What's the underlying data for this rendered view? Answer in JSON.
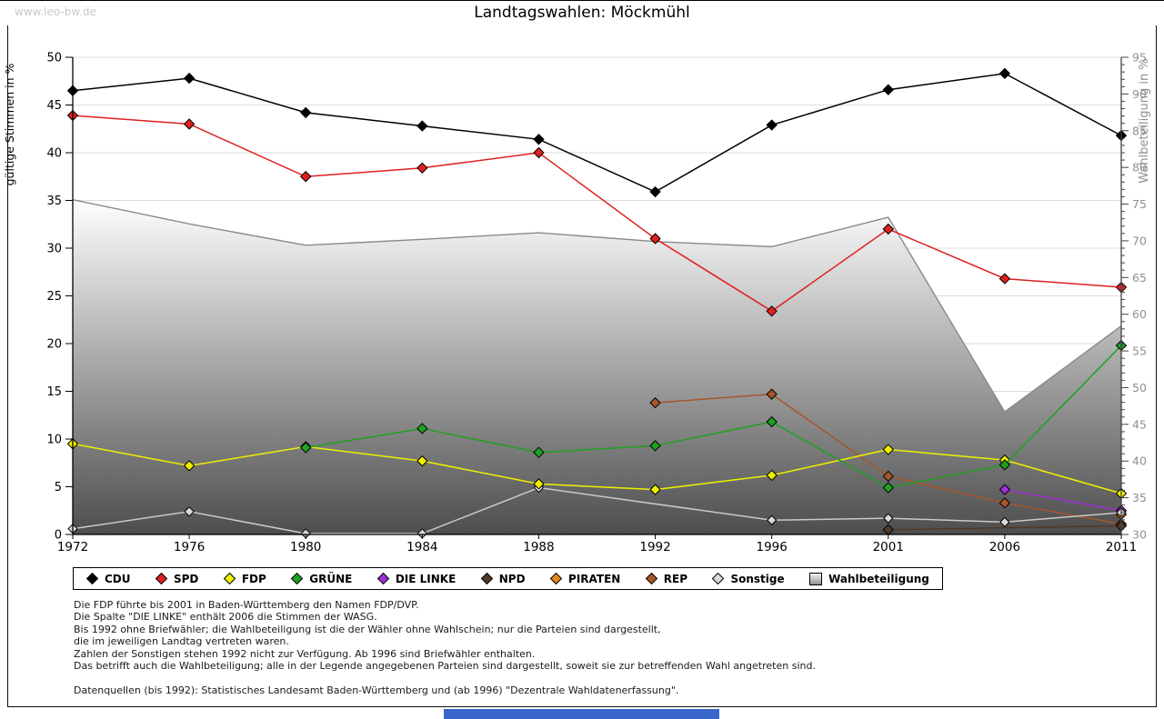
{
  "watermark": "www.leo-bw.de",
  "title": "Landtagswahlen: Möckmühl",
  "chart_data": {
    "type": "line",
    "title": "Landtagswahlen: Möckmühl",
    "x_categories": [
      "1972",
      "1976",
      "1980",
      "1984",
      "1988",
      "1992",
      "1996",
      "2001",
      "2006",
      "2011"
    ],
    "left_axis": {
      "label": "gültige Stimmen in %",
      "min": 0,
      "max": 50,
      "ticks": [
        0,
        5,
        10,
        15,
        20,
        25,
        30,
        35,
        40,
        45,
        50
      ]
    },
    "right_axis": {
      "label": "Wahlbeteiligung in %",
      "min": 30,
      "max": 95,
      "ticks": [
        30,
        35,
        40,
        45,
        50,
        55,
        60,
        65,
        70,
        75,
        80,
        85,
        90,
        95
      ],
      "minor_tick_step": 1
    },
    "grid": true,
    "legend_position": "bottom",
    "area_gradient": [
      "#ffffff",
      "#4d4d4d"
    ],
    "draw_order": [
      "REP",
      "NPD",
      "PIRATEN",
      "DIE LINKE",
      "Sonstige",
      "FDP",
      "GRÜNE",
      "SPD",
      "CDU"
    ],
    "series": [
      {
        "name": "CDU",
        "axis": "left",
        "color": "#000000",
        "values": [
          46.5,
          47.8,
          44.2,
          42.8,
          41.4,
          35.9,
          42.9,
          46.6,
          48.3,
          41.8
        ]
      },
      {
        "name": "SPD",
        "axis": "left",
        "color": "#e02020",
        "values": [
          43.9,
          43.0,
          37.5,
          38.4,
          40.0,
          31.0,
          23.4,
          32.0,
          26.8,
          25.9
        ]
      },
      {
        "name": "FDP",
        "axis": "left",
        "color": "#f0f000",
        "values": [
          9.5,
          7.2,
          9.2,
          7.7,
          5.3,
          4.7,
          6.2,
          8.9,
          7.8,
          4.3
        ]
      },
      {
        "name": "GRÜNE",
        "axis": "left",
        "color": "#20a020",
        "values": [
          null,
          null,
          9.1,
          11.1,
          8.6,
          9.3,
          11.8,
          4.9,
          7.3,
          19.8
        ]
      },
      {
        "name": "DIE LINKE",
        "axis": "left",
        "color": "#9b30d9",
        "values": [
          null,
          null,
          null,
          null,
          null,
          null,
          null,
          null,
          4.7,
          2.5
        ]
      },
      {
        "name": "NPD",
        "axis": "left",
        "color": "#503a28",
        "values": [
          null,
          null,
          null,
          null,
          null,
          null,
          null,
          0.5,
          null,
          0.9
        ]
      },
      {
        "name": "PIRATEN",
        "axis": "left",
        "color": "#e8861c",
        "values": [
          null,
          null,
          null,
          null,
          null,
          null,
          null,
          null,
          null,
          2.1
        ]
      },
      {
        "name": "REP",
        "axis": "left",
        "color": "#a5562a",
        "values": [
          null,
          null,
          null,
          null,
          null,
          13.8,
          14.7,
          6.1,
          3.3,
          1.1
        ]
      },
      {
        "name": "Sonstige",
        "axis": "left",
        "color": "#c9c9c9",
        "marker_fill": "#d9d9d9",
        "values": [
          0.6,
          2.4,
          0.1,
          0.1,
          4.9,
          null,
          1.5,
          1.7,
          1.3,
          2.3
        ]
      },
      {
        "name": "Wahlbeteiligung",
        "axis": "right",
        "type": "area",
        "color": "#8a8a8a",
        "values": [
          75.6,
          72.3,
          69.4,
          70.2,
          71.1,
          69.9,
          69.2,
          73.2,
          46.7,
          58.4
        ]
      }
    ]
  },
  "footnotes": [
    "Die FDP führte bis 2001 in Baden-Württemberg den Namen FDP/DVP.",
    "Die Spalte \"DIE LINKE\" enthält 2006 die Stimmen der WASG.",
    "Bis 1992 ohne Briefwähler; die Wahlbeteiligung ist die der Wähler ohne Wahlschein; nur die Parteien sind dargestellt,",
    "die im jeweiligen Landtag vertreten waren.",
    "Zahlen der Sonstigen stehen 1992 nicht zur Verfügung. Ab 1996 sind Briefwähler enthalten.",
    "Das betrifft auch die Wahlbeteiligung; alle in der Legende angegebenen Parteien sind dargestellt, soweit sie zur betreffenden Wahl angetreten sind.",
    "",
    "Datenquellen (bis 1992): Statistisches Landesamt Baden-Württemberg und (ab 1996) \"Dezentrale Wahldatenerfassung\"."
  ]
}
